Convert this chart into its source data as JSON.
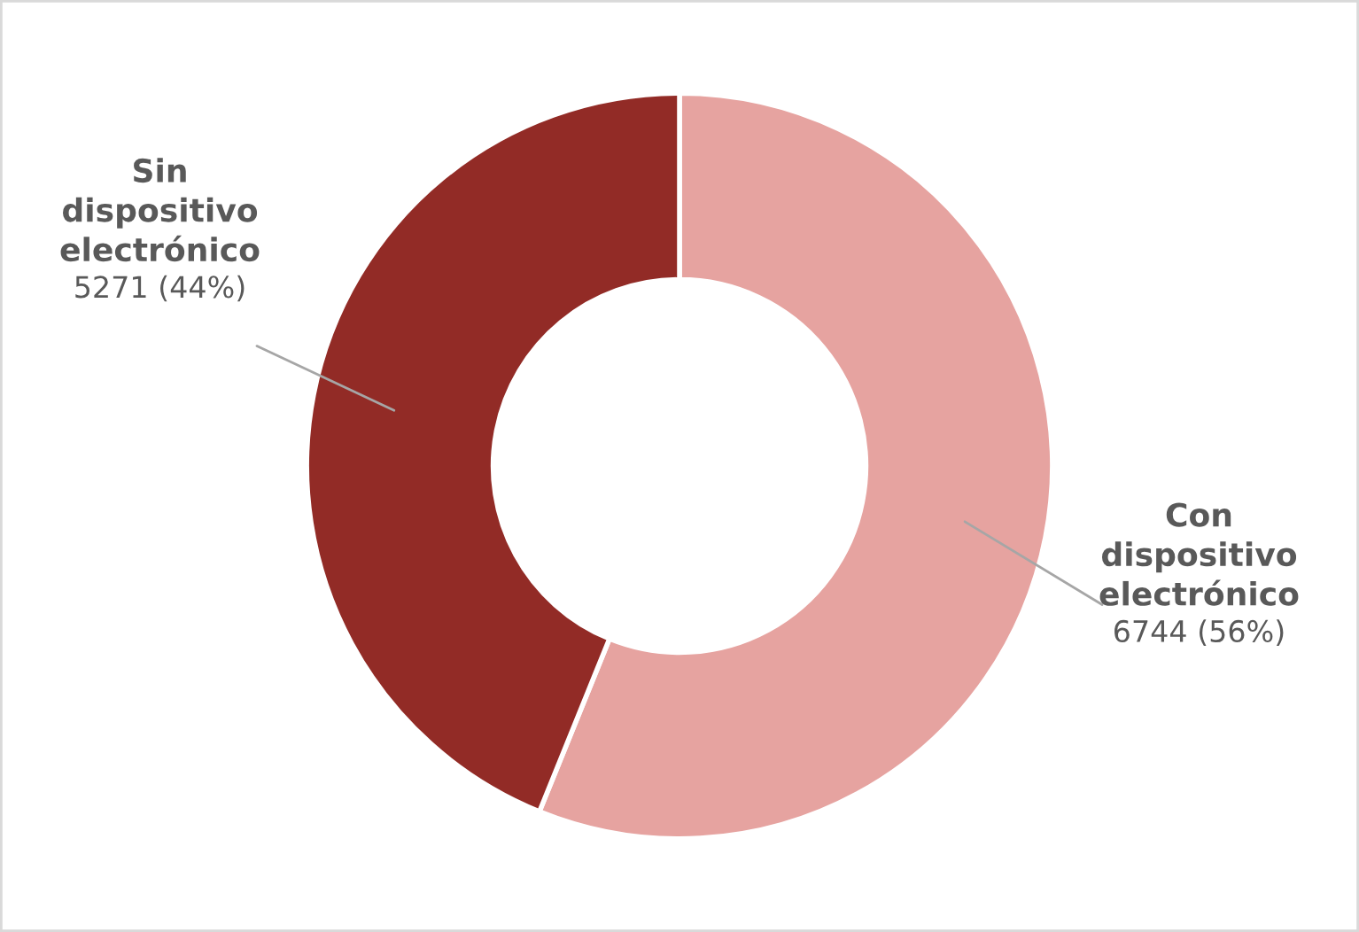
{
  "chart_data": {
    "type": "donut",
    "categories": [
      "Con dispositivo electrónico",
      "Sin dispositivo electrónico"
    ],
    "values": [
      6744,
      5271
    ],
    "colors": [
      "#e6a3a0",
      "#922b26"
    ],
    "value_labels": [
      "6744 (56%)",
      "5271 (44%)"
    ],
    "legend": false
  }
}
